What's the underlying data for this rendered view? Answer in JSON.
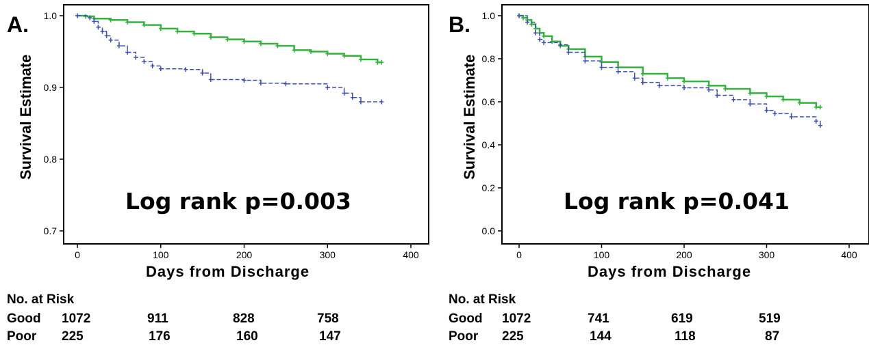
{
  "chart_data": [
    {
      "type": "line",
      "panel_label": "A.",
      "ylabel": "Survival Estimate",
      "xlabel": "Days from Discharge",
      "annotation": "Log rank p=0.003",
      "xlim": [
        0,
        400
      ],
      "ylim": [
        0.7,
        1.0
      ],
      "xticks": [
        "0",
        "100",
        "200",
        "300",
        "400"
      ],
      "yticks": [
        "0.7",
        "0.8",
        "0.9",
        "1.0"
      ],
      "series": [
        {
          "color": "#33b33d",
          "style": "solid",
          "points": [
            [
              0,
              1.0
            ],
            [
              10,
              0.999
            ],
            [
              20,
              0.996
            ],
            [
              40,
              0.994
            ],
            [
              60,
              0.991
            ],
            [
              80,
              0.987
            ],
            [
              100,
              0.982
            ],
            [
              120,
              0.978
            ],
            [
              140,
              0.975
            ],
            [
              160,
              0.97
            ],
            [
              180,
              0.967
            ],
            [
              200,
              0.964
            ],
            [
              220,
              0.961
            ],
            [
              240,
              0.958
            ],
            [
              260,
              0.952
            ],
            [
              280,
              0.95
            ],
            [
              300,
              0.947
            ],
            [
              320,
              0.944
            ],
            [
              340,
              0.939
            ],
            [
              360,
              0.935
            ],
            [
              365,
              0.935
            ]
          ]
        },
        {
          "color": "#3b4fb0",
          "style": "dashed",
          "points": [
            [
              0,
              1.0
            ],
            [
              15,
              0.997
            ],
            [
              20,
              0.992
            ],
            [
              25,
              0.984
            ],
            [
              30,
              0.978
            ],
            [
              35,
              0.972
            ],
            [
              40,
              0.966
            ],
            [
              50,
              0.958
            ],
            [
              60,
              0.949
            ],
            [
              70,
              0.942
            ],
            [
              80,
              0.936
            ],
            [
              90,
              0.93
            ],
            [
              100,
              0.926
            ],
            [
              130,
              0.925
            ],
            [
              150,
              0.92
            ],
            [
              160,
              0.911
            ],
            [
              200,
              0.91
            ],
            [
              220,
              0.906
            ],
            [
              250,
              0.905
            ],
            [
              300,
              0.9
            ],
            [
              320,
              0.892
            ],
            [
              330,
              0.886
            ],
            [
              340,
              0.88
            ],
            [
              365,
              0.88
            ]
          ]
        }
      ],
      "risk_table": {
        "header": "No. at Risk",
        "rows": [
          {
            "label": "Good",
            "values": [
              "1072",
              "911",
              "828",
              "758"
            ]
          },
          {
            "label": "Poor",
            "values": [
              "225",
              "176",
              "160",
              "147"
            ]
          }
        ]
      }
    },
    {
      "type": "line",
      "panel_label": "B.",
      "ylabel": "Survival Estimate",
      "xlabel": "Days from Discharge",
      "annotation": "Log rank p=0.041",
      "xlim": [
        0,
        400
      ],
      "ylim": [
        0.0,
        1.0
      ],
      "xticks": [
        "0",
        "100",
        "200",
        "300",
        "400"
      ],
      "yticks": [
        "0.0",
        "0.2",
        "0.4",
        "0.6",
        "0.8",
        "1.0"
      ],
      "series": [
        {
          "color": "#33b33d",
          "style": "solid",
          "points": [
            [
              0,
              1.0
            ],
            [
              5,
              0.99
            ],
            [
              10,
              0.98
            ],
            [
              15,
              0.96
            ],
            [
              20,
              0.94
            ],
            [
              25,
              0.92
            ],
            [
              30,
              0.905
            ],
            [
              40,
              0.88
            ],
            [
              50,
              0.86
            ],
            [
              60,
              0.845
            ],
            [
              80,
              0.81
            ],
            [
              100,
              0.785
            ],
            [
              120,
              0.76
            ],
            [
              150,
              0.73
            ],
            [
              180,
              0.71
            ],
            [
              200,
              0.695
            ],
            [
              230,
              0.675
            ],
            [
              250,
              0.66
            ],
            [
              280,
              0.64
            ],
            [
              300,
              0.625
            ],
            [
              320,
              0.61
            ],
            [
              340,
              0.595
            ],
            [
              360,
              0.575
            ],
            [
              365,
              0.575
            ]
          ]
        },
        {
          "color": "#3b4fb0",
          "style": "dashed",
          "points": [
            [
              0,
              1.0
            ],
            [
              10,
              0.97
            ],
            [
              20,
              0.92
            ],
            [
              25,
              0.89
            ],
            [
              30,
              0.875
            ],
            [
              50,
              0.865
            ],
            [
              60,
              0.83
            ],
            [
              80,
              0.79
            ],
            [
              100,
              0.76
            ],
            [
              120,
              0.74
            ],
            [
              140,
              0.71
            ],
            [
              150,
              0.69
            ],
            [
              170,
              0.675
            ],
            [
              200,
              0.665
            ],
            [
              230,
              0.655
            ],
            [
              240,
              0.63
            ],
            [
              260,
              0.61
            ],
            [
              280,
              0.59
            ],
            [
              300,
              0.56
            ],
            [
              310,
              0.545
            ],
            [
              330,
              0.53
            ],
            [
              360,
              0.51
            ],
            [
              365,
              0.49
            ]
          ]
        }
      ],
      "risk_table": {
        "header": "No. at Risk",
        "rows": [
          {
            "label": "Good",
            "values": [
              "1072",
              "741",
              "619",
              "519"
            ]
          },
          {
            "label": "Poor",
            "values": [
              "225",
              "144",
              "118",
              "87"
            ]
          }
        ]
      }
    }
  ]
}
